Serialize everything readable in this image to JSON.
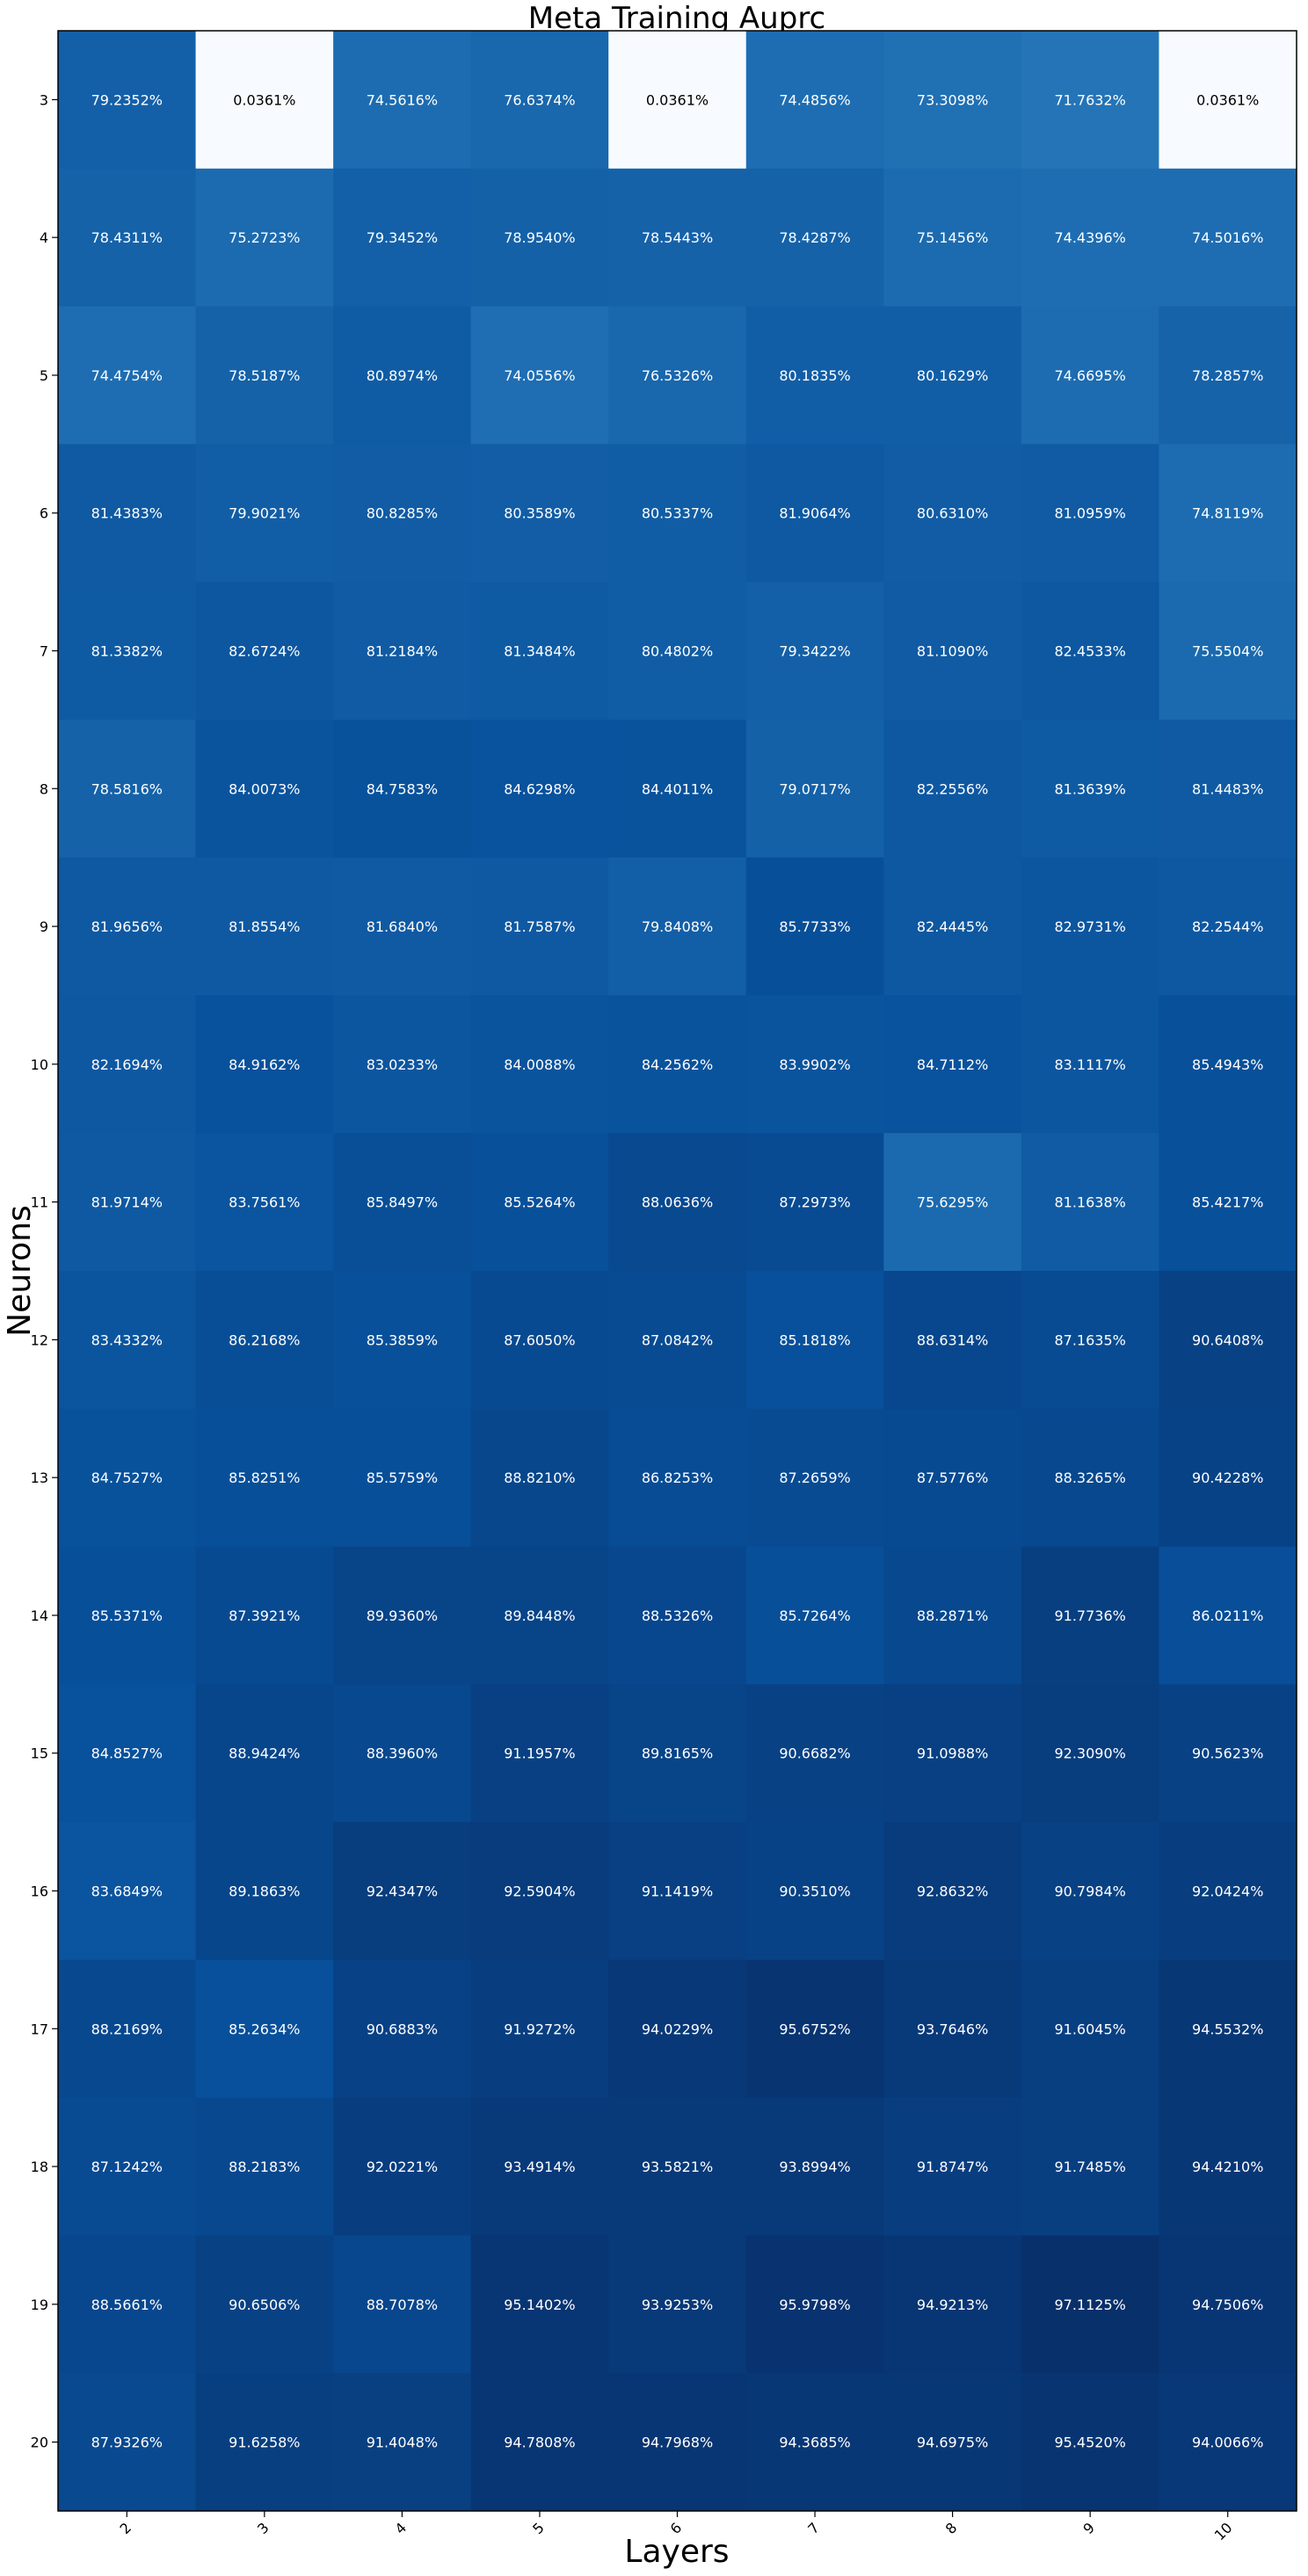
{
  "chart_data": {
    "type": "heatmap",
    "title": "Meta Training Auprc",
    "xlabel": "Layers",
    "ylabel": "Neurons",
    "colormap": "Blues",
    "x_ticks": [
      "2",
      "3",
      "4",
      "5",
      "6",
      "7",
      "8",
      "9",
      "10"
    ],
    "y_ticks": [
      "3",
      "4",
      "5",
      "6",
      "7",
      "8",
      "9",
      "10",
      "11",
      "12",
      "13",
      "14",
      "15",
      "16",
      "17",
      "18",
      "19",
      "20"
    ],
    "values": [
      [
        79.2352,
        0.0361,
        74.5616,
        76.6374,
        0.0361,
        74.4856,
        73.3098,
        71.7632,
        0.0361
      ],
      [
        78.4311,
        75.2723,
        79.3452,
        78.954,
        78.5443,
        78.4287,
        75.1456,
        74.4396,
        74.5016
      ],
      [
        74.4754,
        78.5187,
        80.8974,
        74.0556,
        76.5326,
        80.1835,
        80.1629,
        74.6695,
        78.2857
      ],
      [
        81.4383,
        79.9021,
        80.8285,
        80.3589,
        80.5337,
        81.9064,
        80.631,
        81.0959,
        74.8119
      ],
      [
        81.3382,
        82.6724,
        81.2184,
        81.3484,
        80.4802,
        79.3422,
        81.109,
        82.4533,
        75.5504
      ],
      [
        78.5816,
        84.0073,
        84.7583,
        84.6298,
        84.4011,
        79.0717,
        82.2556,
        81.3639,
        81.4483
      ],
      [
        81.9656,
        81.8554,
        81.684,
        81.7587,
        79.8408,
        85.7733,
        82.4445,
        82.9731,
        82.2544
      ],
      [
        82.1694,
        84.9162,
        83.0233,
        84.0088,
        84.2562,
        83.9902,
        84.7112,
        83.1117,
        85.4943
      ],
      [
        81.9714,
        83.7561,
        85.8497,
        85.5264,
        88.0636,
        87.2973,
        75.6295,
        81.1638,
        85.4217
      ],
      [
        83.4332,
        86.2168,
        85.3859,
        87.605,
        87.0842,
        85.1818,
        88.6314,
        87.1635,
        90.6408
      ],
      [
        84.7527,
        85.8251,
        85.5759,
        88.821,
        86.8253,
        87.2659,
        87.5776,
        88.3265,
        90.4228
      ],
      [
        85.5371,
        87.3921,
        89.936,
        89.8448,
        88.5326,
        85.7264,
        88.2871,
        91.7736,
        86.0211
      ],
      [
        84.8527,
        88.9424,
        88.396,
        91.1957,
        89.8165,
        90.6682,
        91.0988,
        92.309,
        90.5623
      ],
      [
        83.6849,
        89.1863,
        92.4347,
        92.5904,
        91.1419,
        90.351,
        92.8632,
        90.7984,
        92.0424
      ],
      [
        88.2169,
        85.2634,
        90.6883,
        91.9272,
        94.0229,
        95.6752,
        93.7646,
        91.6045,
        94.5532
      ],
      [
        87.1242,
        88.2183,
        92.0221,
        93.4914,
        93.5821,
        93.8994,
        91.8747,
        91.7485,
        94.421
      ],
      [
        88.5661,
        90.6506,
        88.7078,
        95.1402,
        93.9253,
        95.9798,
        94.9213,
        97.1125,
        94.7506
      ],
      [
        87.9326,
        91.6258,
        91.4048,
        94.7808,
        94.7968,
        94.3685,
        94.6975,
        95.452,
        94.0066
      ]
    ],
    "value_format": "percent with 4 decimals",
    "grid": false,
    "legend": "none"
  }
}
